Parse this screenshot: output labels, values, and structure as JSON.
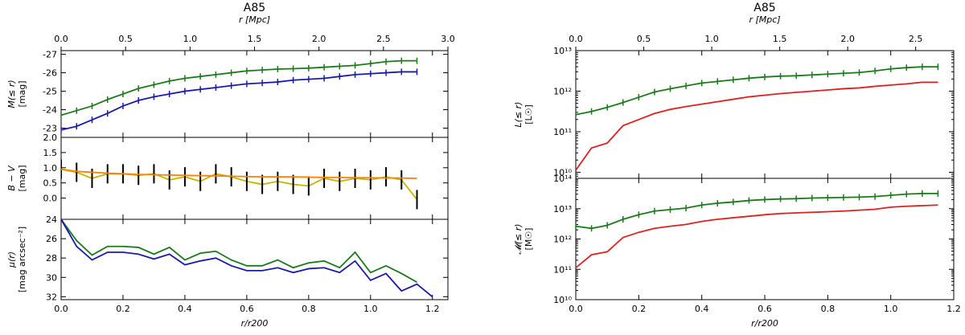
{
  "chart_data": [
    {
      "id": "left",
      "type": "line",
      "title": "A85",
      "top_axis": {
        "label": "r [Mpc]",
        "range": [
          0,
          3.0
        ],
        "ticks": [
          "0.0",
          "0.5",
          "1.0",
          "1.5",
          "2.0",
          "2.5",
          "3.0"
        ]
      },
      "xlabel": "r/r200",
      "xlim": [
        0,
        1.25
      ],
      "xticks": [
        "0.0",
        "0.2",
        "0.4",
        "0.6",
        "0.8",
        "1.0",
        "1.2"
      ],
      "panels": [
        {
          "id": "magnitude",
          "ylabel": "M(≤ r)",
          "yunit": "[mag]",
          "ylim": [
            -22.5,
            -27.2
          ],
          "yticks": [
            "-23",
            "-24",
            "-25",
            "-26",
            "-27"
          ],
          "series": [
            {
              "color": "#1a7a1a",
              "errorbars": true,
              "x": [
                0,
                0.05,
                0.1,
                0.15,
                0.2,
                0.25,
                0.3,
                0.35,
                0.4,
                0.45,
                0.5,
                0.55,
                0.6,
                0.65,
                0.7,
                0.75,
                0.8,
                0.85,
                0.9,
                0.95,
                1.0,
                1.05,
                1.1,
                1.15
              ],
              "y": [
                -23.7,
                -23.95,
                -24.2,
                -24.55,
                -24.85,
                -25.15,
                -25.35,
                -25.55,
                -25.7,
                -25.8,
                -25.9,
                -26.0,
                -26.1,
                -26.15,
                -26.2,
                -26.22,
                -26.25,
                -26.3,
                -26.35,
                -26.4,
                -26.5,
                -26.6,
                -26.65,
                -26.65
              ]
            },
            {
              "color": "#1a1aaa",
              "errorbars": true,
              "x": [
                0,
                0.05,
                0.1,
                0.15,
                0.2,
                0.25,
                0.3,
                0.35,
                0.4,
                0.45,
                0.5,
                0.55,
                0.6,
                0.65,
                0.7,
                0.75,
                0.8,
                0.85,
                0.9,
                0.95,
                1.0,
                1.05,
                1.1,
                1.15
              ],
              "y": [
                -22.9,
                -23.1,
                -23.45,
                -23.8,
                -24.2,
                -24.5,
                -24.7,
                -24.85,
                -25.0,
                -25.1,
                -25.2,
                -25.3,
                -25.4,
                -25.45,
                -25.5,
                -25.6,
                -25.65,
                -25.7,
                -25.8,
                -25.9,
                -25.95,
                -26.0,
                -26.05,
                -26.05
              ]
            }
          ]
        },
        {
          "id": "color",
          "ylabel": "B − V",
          "yunit": "[mag]",
          "ylim": [
            -0.7,
            2.0
          ],
          "yticks": [
            "0.0",
            "0.5",
            "1.0",
            "1.5",
            "2.0"
          ],
          "series": [
            {
              "color": "#c8b400",
              "errorbars": true,
              "x": [
                0,
                0.05,
                0.1,
                0.15,
                0.2,
                0.25,
                0.3,
                0.35,
                0.4,
                0.45,
                0.5,
                0.55,
                0.6,
                0.65,
                0.7,
                0.75,
                0.8,
                0.85,
                0.9,
                0.95,
                1.0,
                1.05,
                1.1,
                1.15
              ],
              "y": [
                0.95,
                0.85,
                0.65,
                0.8,
                0.8,
                0.75,
                0.8,
                0.6,
                0.7,
                0.55,
                0.8,
                0.7,
                0.55,
                0.45,
                0.55,
                0.45,
                0.4,
                0.65,
                0.55,
                0.65,
                0.6,
                0.7,
                0.6,
                -0.05
              ]
            },
            {
              "color": "#ff8000",
              "errorbars": false,
              "x": [
                0,
                0.05,
                0.1,
                0.15,
                0.2,
                0.25,
                0.3,
                0.35,
                0.4,
                0.45,
                0.5,
                0.55,
                0.6,
                0.65,
                0.7,
                0.75,
                0.8,
                0.85,
                0.9,
                0.95,
                1.0,
                1.05,
                1.1,
                1.15
              ],
              "y": [
                0.95,
                0.88,
                0.85,
                0.82,
                0.8,
                0.78,
                0.77,
                0.76,
                0.75,
                0.74,
                0.73,
                0.72,
                0.71,
                0.7,
                0.7,
                0.7,
                0.69,
                0.68,
                0.68,
                0.67,
                0.67,
                0.66,
                0.66,
                0.65
              ]
            }
          ]
        },
        {
          "id": "surface-brightness",
          "ylabel": "μ(r)",
          "yunit": "[mag arcsec⁻²]",
          "ylim": [
            32.3,
            24.0
          ],
          "yticks": [
            "24",
            "26",
            "28",
            "30",
            "32"
          ],
          "series": [
            {
              "color": "#1a7a1a",
              "errorbars": false,
              "x": [
                0,
                0.05,
                0.1,
                0.15,
                0.2,
                0.25,
                0.3,
                0.35,
                0.4,
                0.45,
                0.5,
                0.55,
                0.6,
                0.65,
                0.7,
                0.75,
                0.8,
                0.85,
                0.9,
                0.95,
                1.0,
                1.05,
                1.1,
                1.15
              ],
              "y": [
                24.0,
                26.2,
                27.7,
                26.8,
                26.8,
                26.9,
                27.6,
                26.9,
                28.2,
                27.5,
                27.3,
                28.2,
                28.8,
                28.8,
                28.2,
                29.0,
                28.5,
                28.3,
                29.0,
                27.4,
                29.5,
                28.8,
                29.6,
                30.5
              ]
            },
            {
              "color": "#1a1aaa",
              "errorbars": false,
              "x": [
                0,
                0.05,
                0.1,
                0.15,
                0.2,
                0.25,
                0.3,
                0.35,
                0.4,
                0.45,
                0.5,
                0.55,
                0.6,
                0.65,
                0.7,
                0.75,
                0.8,
                0.85,
                0.9,
                0.95,
                1.0,
                1.05,
                1.1,
                1.15,
                1.2
              ],
              "y": [
                24.0,
                26.8,
                28.2,
                27.4,
                27.4,
                27.6,
                28.1,
                27.6,
                28.7,
                28.3,
                28.0,
                28.8,
                29.3,
                29.3,
                29.0,
                29.5,
                29.1,
                29.0,
                29.5,
                28.3,
                30.3,
                29.6,
                31.4,
                30.7,
                32.0
              ]
            }
          ]
        }
      ]
    },
    {
      "id": "right",
      "type": "line",
      "title": "A85",
      "top_axis": {
        "label": "r [Mpc]",
        "range": [
          0,
          2.78
        ],
        "ticks": [
          "0.0",
          "0.5",
          "1.0",
          "1.5",
          "2.0",
          "2.5"
        ]
      },
      "xlabel": "r/r200",
      "xlim": [
        0,
        1.2
      ],
      "xticks": [
        "0.0",
        "0.2",
        "0.4",
        "0.6",
        "0.8",
        "1.0",
        "1.2"
      ],
      "panels": [
        {
          "id": "luminosity",
          "ylabel": "L(≤ r)",
          "yunit": "[L☉]",
          "log": true,
          "ylim_exp": [
            9.85,
            13.0
          ],
          "yticks": [
            "10¹⁰",
            "10¹¹",
            "10¹²",
            "10¹³"
          ],
          "series": [
            {
              "color": "#1a7a1a",
              "errorbars": true,
              "x": [
                0,
                0.05,
                0.1,
                0.15,
                0.2,
                0.25,
                0.3,
                0.35,
                0.4,
                0.45,
                0.5,
                0.55,
                0.6,
                0.65,
                0.7,
                0.75,
                0.8,
                0.85,
                0.9,
                0.95,
                1.0,
                1.05,
                1.1,
                1.15
              ],
              "y": [
                11.42,
                11.5,
                11.6,
                11.72,
                11.85,
                11.98,
                12.06,
                12.13,
                12.2,
                12.24,
                12.28,
                12.32,
                12.35,
                12.37,
                12.38,
                12.4,
                12.42,
                12.44,
                12.46,
                12.5,
                12.55,
                12.58,
                12.6,
                12.6
              ]
            },
            {
              "color": "#dd2020",
              "errorbars": false,
              "x": [
                0,
                0.05,
                0.1,
                0.15,
                0.2,
                0.25,
                0.3,
                0.35,
                0.4,
                0.45,
                0.5,
                0.55,
                0.6,
                0.65,
                0.7,
                0.75,
                0.8,
                0.85,
                0.9,
                0.95,
                1.0,
                1.05,
                1.1,
                1.15
              ],
              "y": [
                10.05,
                10.6,
                10.72,
                11.15,
                11.3,
                11.45,
                11.55,
                11.62,
                11.68,
                11.74,
                11.8,
                11.86,
                11.9,
                11.94,
                11.97,
                12.0,
                12.03,
                12.06,
                12.08,
                12.12,
                12.15,
                12.18,
                12.22,
                12.22
              ]
            }
          ]
        },
        {
          "id": "mass",
          "ylabel": "𝓜(≤ r)",
          "yunit": "[M☉]",
          "log": true,
          "ylim_exp": [
            10.0,
            14.0
          ],
          "yticks": [
            "10¹⁰",
            "10¹¹",
            "10¹²",
            "10¹³",
            "10¹⁴"
          ],
          "series": [
            {
              "color": "#1a7a1a",
              "errorbars": true,
              "x": [
                0,
                0.05,
                0.1,
                0.15,
                0.2,
                0.25,
                0.3,
                0.35,
                0.4,
                0.45,
                0.5,
                0.55,
                0.6,
                0.65,
                0.7,
                0.75,
                0.8,
                0.85,
                0.9,
                0.95,
                1.0,
                1.05,
                1.1,
                1.15
              ],
              "y": [
                12.42,
                12.35,
                12.45,
                12.65,
                12.8,
                12.92,
                12.97,
                13.02,
                13.12,
                13.18,
                13.22,
                13.27,
                13.3,
                13.32,
                13.33,
                13.35,
                13.36,
                13.37,
                13.38,
                13.4,
                13.44,
                13.48,
                13.5,
                13.5
              ]
            },
            {
              "color": "#dd2020",
              "errorbars": false,
              "x": [
                0,
                0.05,
                0.1,
                0.15,
                0.2,
                0.25,
                0.3,
                0.35,
                0.4,
                0.45,
                0.5,
                0.55,
                0.6,
                0.65,
                0.7,
                0.75,
                0.8,
                0.85,
                0.9,
                0.95,
                1.0,
                1.05,
                1.1,
                1.15
              ],
              "y": [
                11.05,
                11.48,
                11.58,
                12.05,
                12.22,
                12.35,
                12.42,
                12.48,
                12.58,
                12.65,
                12.7,
                12.75,
                12.8,
                12.84,
                12.86,
                12.88,
                12.9,
                12.92,
                12.95,
                12.98,
                13.05,
                13.08,
                13.1,
                13.12
              ]
            }
          ]
        }
      ]
    }
  ]
}
